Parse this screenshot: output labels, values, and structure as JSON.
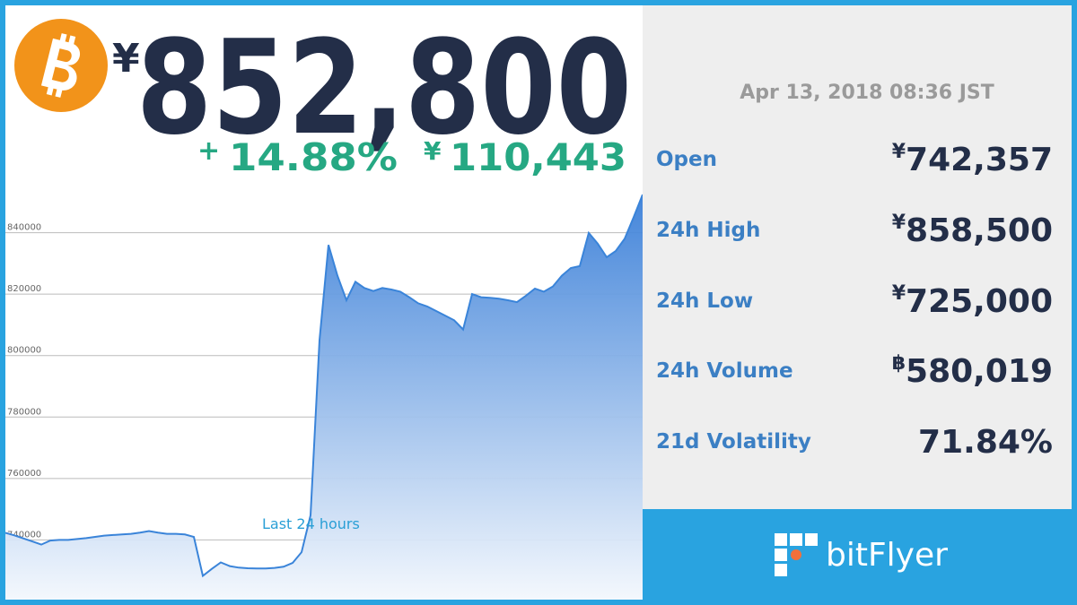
{
  "price": {
    "symbol": "¥",
    "value": "852,800"
  },
  "change": {
    "sign": "+",
    "percent": "14.88%",
    "symbol": "¥",
    "amount": "110,443"
  },
  "timestamp": "Apr 13, 2018 08:36 JST",
  "stats": [
    {
      "label": "Open",
      "symbol": "¥",
      "value": "742,357"
    },
    {
      "label": "24h High",
      "symbol": "¥",
      "value": "858,500"
    },
    {
      "label": "24h Low",
      "symbol": "¥",
      "value": "725,000"
    },
    {
      "label": "24h Volume",
      "symbol": "฿",
      "value": "580,019"
    },
    {
      "label": "21d Volatility",
      "value": "71.84%"
    }
  ],
  "brand": "bitFlyer",
  "chart_data": {
    "type": "area",
    "annotation": "Last 24 hours",
    "color": "#3a84d9",
    "values": [
      742300,
      741500,
      740500,
      739500,
      738500,
      739800,
      740000,
      740000,
      740300,
      740600,
      741000,
      741400,
      741600,
      741800,
      742000,
      742400,
      742900,
      742400,
      742000,
      742000,
      741800,
      741000,
      728300,
      730600,
      732700,
      731500,
      731000,
      730800,
      730700,
      730700,
      730900,
      731300,
      732500,
      736000,
      748000,
      805000,
      836000,
      826000,
      818000,
      824000,
      822000,
      821000,
      822000,
      821500,
      820800,
      819000,
      817000,
      816000,
      814500,
      813000,
      811500,
      808500,
      820000,
      819000,
      818800,
      818500,
      818000,
      817400,
      819500,
      821800,
      820800,
      822500,
      826000,
      828500,
      829100,
      839900,
      836400,
      832000,
      834000,
      838000,
      845000,
      852400
    ],
    "ylim": [
      720000,
      860000
    ],
    "yticks": [
      740000,
      760000,
      780000,
      800000,
      820000,
      840000
    ],
    "grid": true
  }
}
